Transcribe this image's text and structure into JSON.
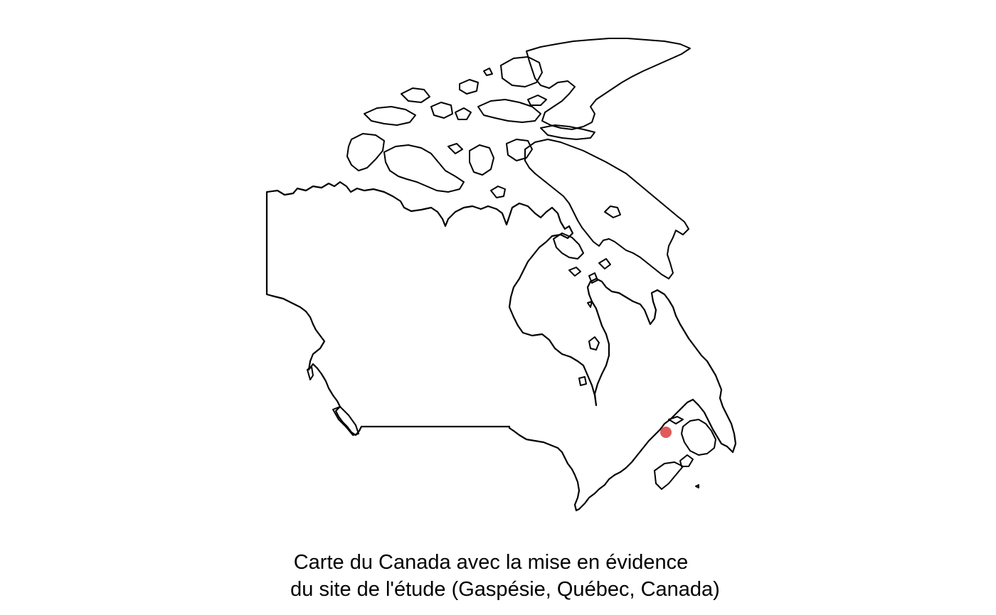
{
  "map": {
    "region": "Canada",
    "outline_color": "#000000",
    "background_color": "#ffffff",
    "marker": {
      "label": "Gaspésie, Québec, Canada",
      "color": "#e05a5a",
      "lon": -65.5,
      "lat": 48.9
    }
  },
  "caption": {
    "line1": "Carte du Canada avec la mise en évidence",
    "line2": "du site de l'étude (Gaspésie, Québec, Canada)"
  }
}
